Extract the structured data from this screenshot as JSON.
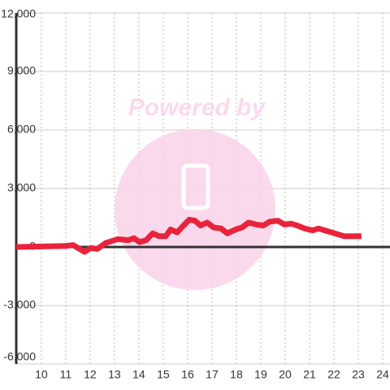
{
  "chart_data": {
    "type": "line",
    "watermark": "Powered by",
    "x": [
      8.97,
      10.97,
      11.3,
      11.77,
      12.03,
      12.3,
      12.63,
      13.13,
      13.57,
      13.8,
      14.03,
      14.3,
      14.57,
      14.83,
      15.1,
      15.3,
      15.57,
      15.83,
      16.07,
      16.3,
      16.53,
      16.8,
      17.07,
      17.37,
      17.63,
      17.97,
      18.23,
      18.5,
      18.83,
      19.1,
      19.37,
      19.7,
      19.97,
      20.23,
      20.5,
      20.8,
      21.13,
      21.37,
      21.63,
      22.03,
      22.43,
      23.13
    ],
    "series": [
      {
        "color": "#e8243c",
        "values": [
          0,
          50,
          100,
          -250,
          -50,
          -100,
          200,
          400,
          350,
          450,
          250,
          350,
          700,
          550,
          550,
          900,
          750,
          1100,
          1400,
          1350,
          1100,
          1250,
          1000,
          950,
          700,
          900,
          1000,
          1250,
          1150,
          1100,
          1300,
          1350,
          1150,
          1200,
          1100,
          950,
          850,
          950,
          850,
          700,
          550,
          550
        ]
      }
    ],
    "xlim": [
      8.97,
      24.3
    ],
    "xticks": [
      10,
      11,
      12,
      13,
      14,
      15,
      16,
      17,
      18,
      19,
      20,
      21,
      22,
      23,
      24
    ],
    "ylim": [
      -6000,
      12000
    ],
    "yticks": [
      {
        "value": 12000,
        "label": "12,000"
      },
      {
        "value": 9000,
        "label": "9,000"
      },
      {
        "value": 6000,
        "label": "6,000"
      },
      {
        "value": 3000,
        "label": "3,000"
      },
      0,
      {
        "value": -3000,
        "label": "-3,000"
      },
      {
        "value": -6000,
        "label": "-6,000"
      }
    ],
    "grid": true
  }
}
